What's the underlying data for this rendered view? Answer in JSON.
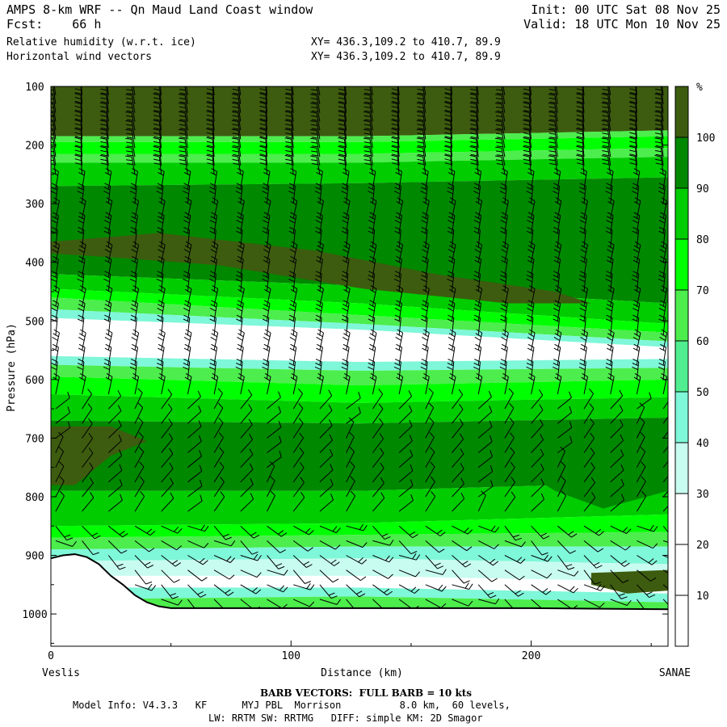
{
  "header": {
    "line1_left": "AMPS 8-km WRF -- Qn Maud Land Coast window",
    "line1_right": "Init: 00 UTC Sat 08 Nov 25",
    "line2_left": "Fcst:    66 h",
    "line2_right": "Valid: 18 UTC Mon 10 Nov 25",
    "field1": "Relative humidity (w.r.t. ice)",
    "field1_xy": "XY= 436.3,109.2 to 410.7, 89.9",
    "field2": "Horizontal wind vectors",
    "field2_xy": "XY= 436.3,109.2 to 410.7, 89.9"
  },
  "chart_data": {
    "type": "heatmap",
    "xlabel": "Distance (km)",
    "ylabel": "Pressure (hPa)",
    "x_ticks": [
      "0",
      "100",
      "200"
    ],
    "x_tick_values": [
      0,
      100,
      200
    ],
    "xlim": [
      0,
      257
    ],
    "y_ticks": [
      "100",
      "200",
      "300",
      "400",
      "500",
      "600",
      "700",
      "800",
      "900",
      "1000"
    ],
    "y_tick_values": [
      100,
      200,
      300,
      400,
      500,
      600,
      700,
      800,
      900,
      1000
    ],
    "ylim": [
      100,
      1055
    ],
    "left_endpoint": "Veslis",
    "right_endpoint": "SANAE",
    "colorbar": {
      "unit": "%",
      "labels": [
        "10",
        "20",
        "30",
        "40",
        "50",
        "60",
        "70",
        "80",
        "90",
        "100"
      ],
      "label_values": [
        10,
        20,
        30,
        40,
        50,
        60,
        70,
        80,
        90,
        100
      ],
      "range": [
        0,
        110
      ],
      "colors": [
        "#ffffff",
        "#ffffff",
        "#ffffff",
        "#c8fcf0",
        "#7ff7d9",
        "#50ee90",
        "#4ced4c",
        "#00ff00",
        "#00cc00",
        "#008800",
        "#3d5c0f"
      ]
    },
    "rh_bands_note": "pressure levels (hPa) of band boundaries at x = 0, 128, 257 km",
    "rh_bands": [
      {
        "rh": 105,
        "top": [
          100,
          100,
          100
        ],
        "bottom": [
          185,
          185,
          175
        ]
      },
      {
        "rh": 65,
        "top": [
          185,
          185,
          175
        ],
        "bottom": [
          195,
          195,
          185
        ]
      },
      {
        "rh": 75,
        "top": [
          195,
          195,
          185
        ],
        "bottom": [
          215,
          215,
          205
        ]
      },
      {
        "rh": 65,
        "top": [
          215,
          215,
          205
        ],
        "bottom": [
          230,
          230,
          220
        ]
      },
      {
        "rh": 85,
        "top": [
          230,
          230,
          220
        ],
        "bottom": [
          270,
          265,
          255
        ]
      },
      {
        "rh": 95,
        "top": [
          270,
          265,
          255
        ],
        "bottom": [
          420,
          440,
          470
        ]
      },
      {
        "rh": 85,
        "top": [
          420,
          440,
          470
        ],
        "bottom": [
          445,
          470,
          505
        ]
      },
      {
        "rh": 75,
        "top": [
          445,
          470,
          505
        ],
        "bottom": [
          460,
          490,
          520
        ]
      },
      {
        "rh": 60,
        "top": [
          460,
          490,
          520
        ],
        "bottom": [
          480,
          505,
          535
        ]
      },
      {
        "rh": 40,
        "top": [
          480,
          505,
          535
        ],
        "bottom": [
          495,
          515,
          545
        ]
      },
      {
        "rh": 20,
        "top": [
          495,
          515,
          545
        ],
        "bottom": [
          560,
          570,
          565
        ]
      },
      {
        "rh": 40,
        "top": [
          560,
          570,
          565
        ],
        "bottom": [
          575,
          585,
          580
        ]
      },
      {
        "rh": 60,
        "top": [
          575,
          585,
          580
        ],
        "bottom": [
          595,
          610,
          600
        ]
      },
      {
        "rh": 75,
        "top": [
          595,
          610,
          600
        ],
        "bottom": [
          625,
          640,
          630
        ]
      },
      {
        "rh": 85,
        "top": [
          625,
          640,
          630
        ],
        "bottom": [
          670,
          675,
          665
        ]
      },
      {
        "rh": 95,
        "top": [
          670,
          675,
          665
        ],
        "bottom": [
          790,
          790,
          775
        ]
      },
      {
        "rh": 85,
        "top": [
          790,
          790,
          775
        ],
        "bottom": [
          850,
          845,
          830
        ]
      },
      {
        "rh": 75,
        "top": [
          850,
          845,
          830
        ],
        "bottom": [
          870,
          865,
          860
        ]
      },
      {
        "rh": 65,
        "top": [
          870,
          865,
          860
        ],
        "bottom": [
          890,
          885,
          885
        ]
      },
      {
        "rh": 45,
        "top": [
          890,
          885,
          885
        ],
        "bottom": [
          910,
          905,
          915
        ]
      },
      {
        "rh": 35,
        "top": [
          910,
          905,
          915
        ],
        "bottom": [
          935,
          935,
          945
        ]
      },
      {
        "rh": 20,
        "top": [
          935,
          935,
          945
        ],
        "bottom": [
          955,
          955,
          965
        ]
      },
      {
        "rh": 45,
        "top": [
          955,
          955,
          965
        ],
        "bottom": [
          975,
          970,
          980
        ]
      },
      {
        "rh": 65,
        "top": [
          975,
          970,
          980
        ],
        "bottom": [
          1055,
          1055,
          1055
        ]
      }
    ],
    "rh_features": [
      {
        "rh": 105,
        "shape": "dry band",
        "x": [
          0,
          45,
          110,
          160,
          210,
          225,
          190,
          130,
          70,
          20,
          0
        ],
        "p": [
          365,
          350,
          380,
          420,
          450,
          470,
          470,
          445,
          405,
          390,
          385
        ]
      },
      {
        "rh": 105,
        "shape": "moist patch",
        "x": [
          0,
          25,
          40,
          25,
          10,
          0
        ],
        "p": [
          680,
          680,
          705,
          730,
          780,
          780
        ]
      },
      {
        "rh": 95,
        "shape": "tongue",
        "x": [
          180,
          225,
          257,
          257,
          230,
          210,
          190
        ],
        "p": [
          700,
          715,
          720,
          790,
          820,
          790,
          740
        ]
      },
      {
        "rh": 105,
        "shape": "moist patch",
        "x": [
          225,
          257,
          257,
          240,
          225
        ],
        "p": [
          930,
          925,
          960,
          965,
          950
        ]
      }
    ],
    "terrain": {
      "x": [
        0,
        5,
        10,
        15,
        20,
        25,
        30,
        35,
        40,
        45,
        50,
        60,
        80,
        100,
        150,
        200,
        257
      ],
      "p": [
        905,
        900,
        898,
        903,
        915,
        935,
        950,
        968,
        980,
        987,
        990,
        990,
        990,
        990,
        990,
        990,
        992
      ]
    },
    "wind_barbs": {
      "description": "Wind barbs plotted on a regular grid over the section; full barb = 10 kts",
      "x_step": 11,
      "p_levels": [
        115,
        130,
        145,
        160,
        175,
        190,
        205,
        220,
        235,
        250,
        275,
        300,
        325,
        350,
        375,
        400,
        425,
        450,
        475,
        500,
        525,
        550,
        575,
        600,
        625,
        650,
        675,
        700,
        725,
        750,
        775,
        800,
        825,
        850,
        875,
        900,
        925,
        950,
        975
      ]
    }
  },
  "footer": {
    "barb_caption": "BARB VECTORS:  FULL BARB = 10 kts",
    "model_line1": "Model Info: V4.3.3   KF      MYJ PBL  Morrison          8.0 km,  60 levels,",
    "model_line2": "LW: RRTM SW: RRTMG   DIFF: simple KM: 2D Smagor"
  }
}
